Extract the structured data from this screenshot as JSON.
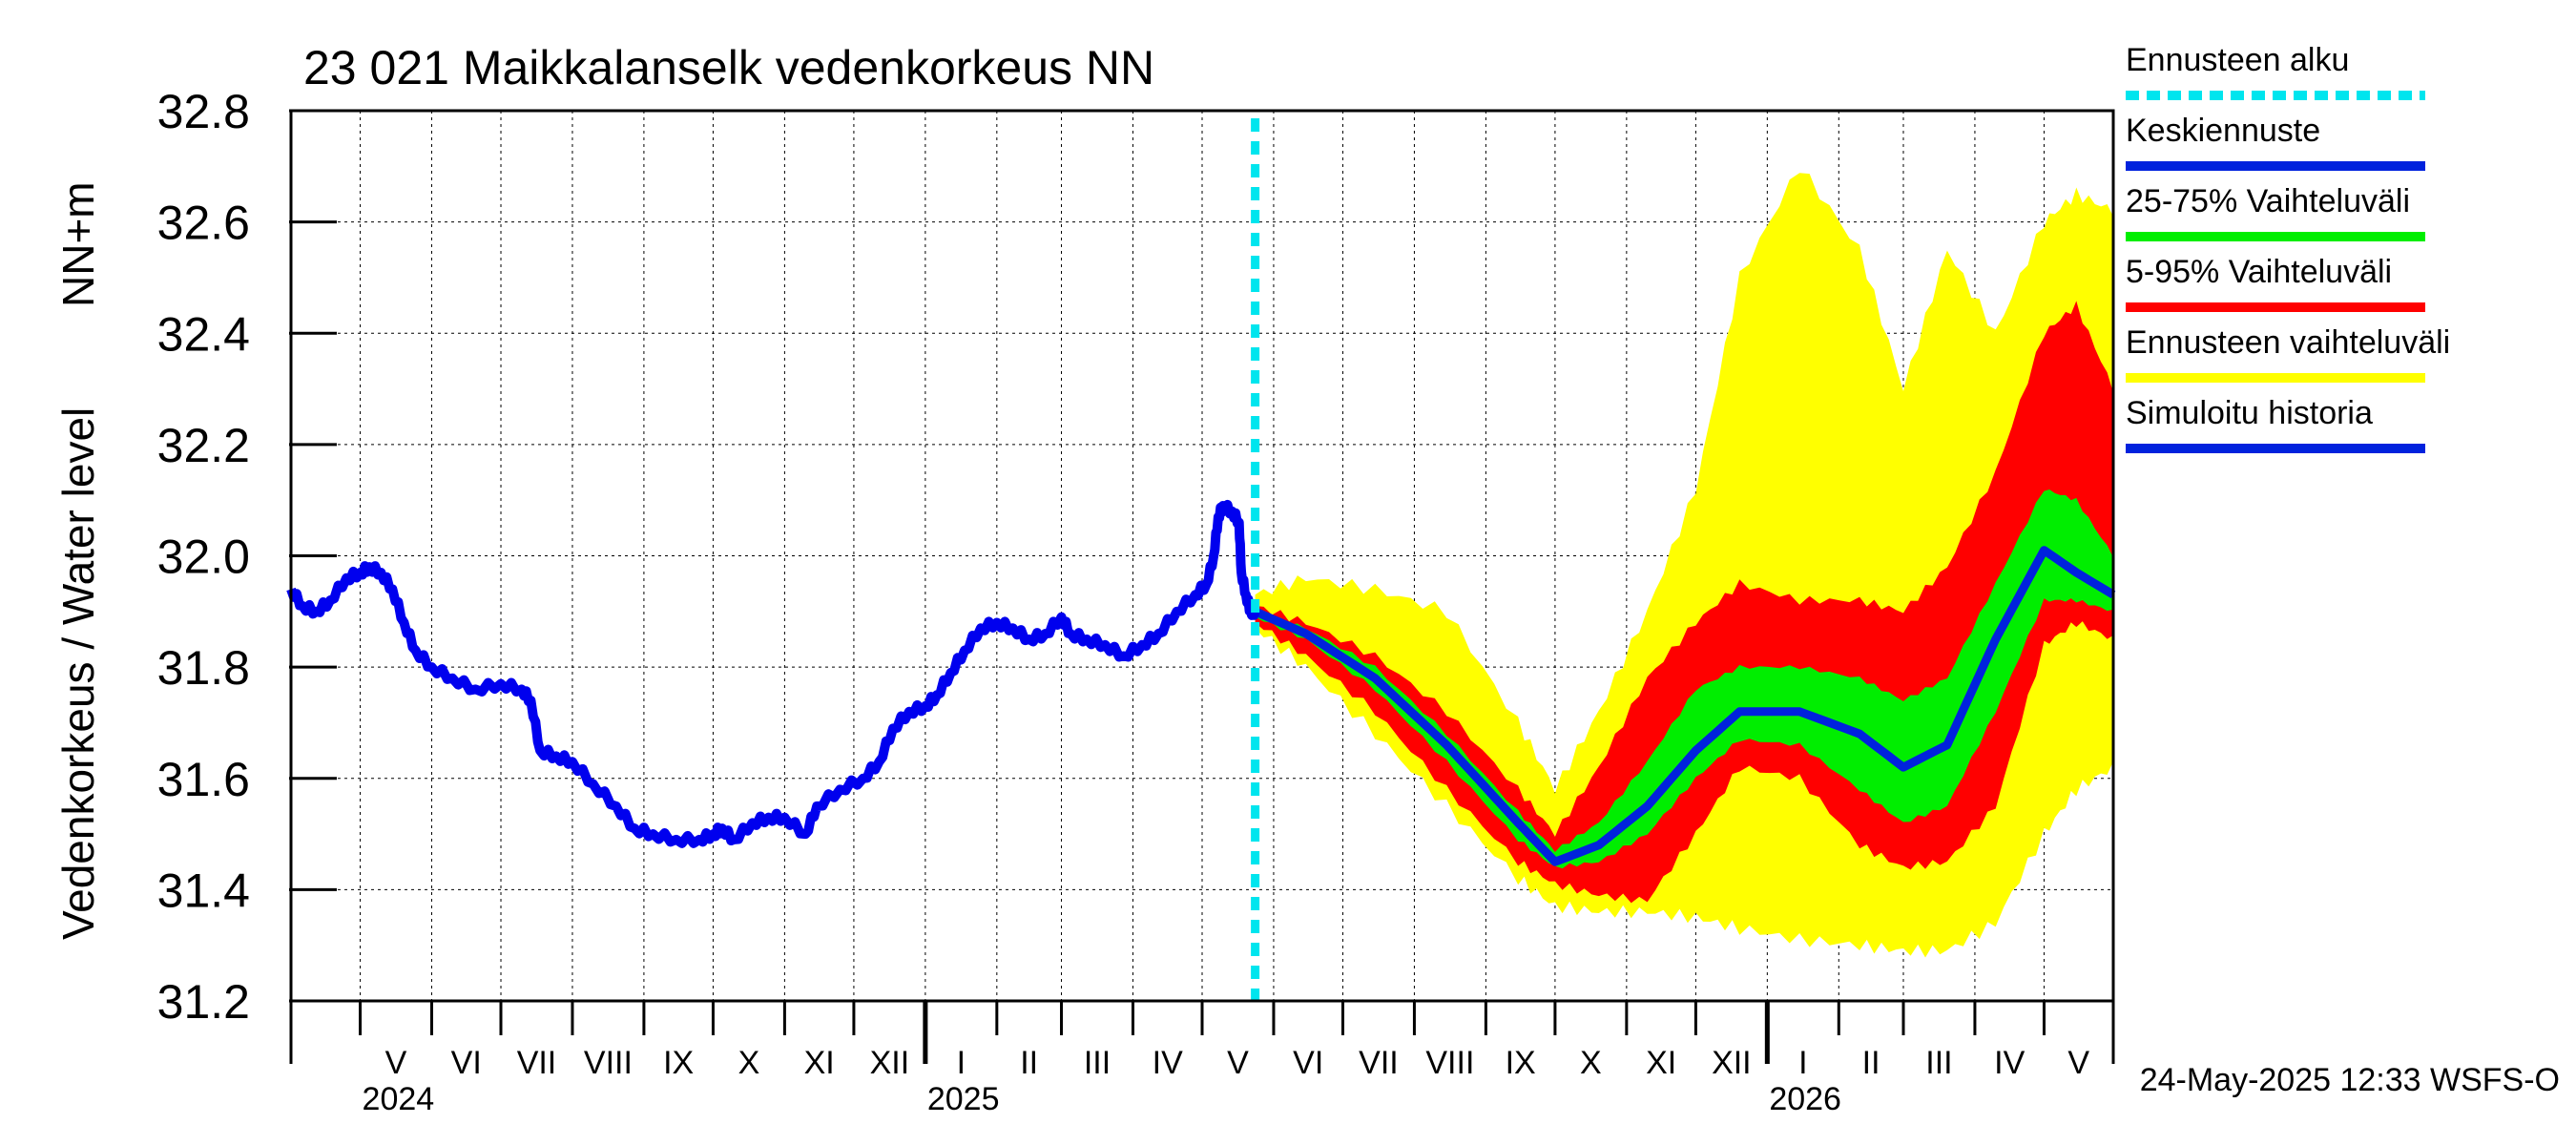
{
  "chart_data": {
    "type": "area",
    "title": "23 021 Maikkalanselk vedenkorkeus NN",
    "ylabel_main": "Vedenkorkeus / Water level",
    "ylabel_unit": "NN+m",
    "ylim": [
      31.2,
      32.8
    ],
    "yticks": [
      "31.2",
      "31.4",
      "31.6",
      "31.8",
      "32.0",
      "32.2",
      "32.4",
      "32.6",
      "32.8"
    ],
    "grid": true,
    "x_start": "2024-04-01",
    "x_end": "2026-05-31",
    "forecast_start": "2025-05-24",
    "months": [
      {
        "label": "V",
        "start": "2024-05-01"
      },
      {
        "label": "VI",
        "start": "2024-06-01"
      },
      {
        "label": "VII",
        "start": "2024-07-01"
      },
      {
        "label": "VIII",
        "start": "2024-08-01"
      },
      {
        "label": "IX",
        "start": "2024-09-01"
      },
      {
        "label": "X",
        "start": "2024-10-01"
      },
      {
        "label": "XI",
        "start": "2024-11-01"
      },
      {
        "label": "XII",
        "start": "2024-12-01"
      },
      {
        "label": "I",
        "start": "2025-01-01"
      },
      {
        "label": "II",
        "start": "2025-02-01"
      },
      {
        "label": "III",
        "start": "2025-03-01"
      },
      {
        "label": "IV",
        "start": "2025-04-01"
      },
      {
        "label": "V",
        "start": "2025-05-01"
      },
      {
        "label": "VI",
        "start": "2025-06-01"
      },
      {
        "label": "VII",
        "start": "2025-07-01"
      },
      {
        "label": "VIII",
        "start": "2025-08-01"
      },
      {
        "label": "IX",
        "start": "2025-09-01"
      },
      {
        "label": "X",
        "start": "2025-10-01"
      },
      {
        "label": "XI",
        "start": "2025-11-01"
      },
      {
        "label": "XII",
        "start": "2025-12-01"
      },
      {
        "label": "I",
        "start": "2026-01-01"
      },
      {
        "label": "II",
        "start": "2026-02-01"
      },
      {
        "label": "III",
        "start": "2026-03-01"
      },
      {
        "label": "IV",
        "start": "2026-04-01"
      },
      {
        "label": "V",
        "start": "2026-05-01"
      }
    ],
    "years": [
      {
        "label": "2024",
        "at": "2024-05-01"
      },
      {
        "label": "2025",
        "at": "2025-01-01"
      },
      {
        "label": "2026",
        "at": "2026-01-01"
      }
    ],
    "history": [
      [
        "2024-04-01",
        31.94
      ],
      [
        "2024-04-06",
        31.91
      ],
      [
        "2024-04-12",
        31.9
      ],
      [
        "2024-04-18",
        31.92
      ],
      [
        "2024-04-25",
        31.96
      ],
      [
        "2024-05-01",
        31.97
      ],
      [
        "2024-05-05",
        31.98
      ],
      [
        "2024-05-10",
        31.97
      ],
      [
        "2024-05-15",
        31.94
      ],
      [
        "2024-05-20",
        31.88
      ],
      [
        "2024-05-25",
        31.83
      ],
      [
        "2024-06-01",
        31.8
      ],
      [
        "2024-06-10",
        31.78
      ],
      [
        "2024-06-20",
        31.76
      ],
      [
        "2024-07-01",
        31.77
      ],
      [
        "2024-07-10",
        31.76
      ],
      [
        "2024-07-14",
        31.74
      ],
      [
        "2024-07-18",
        31.65
      ],
      [
        "2024-07-25",
        31.64
      ],
      [
        "2024-08-01",
        31.63
      ],
      [
        "2024-08-10",
        31.59
      ],
      [
        "2024-08-20",
        31.55
      ],
      [
        "2024-08-28",
        31.51
      ],
      [
        "2024-09-05",
        31.5
      ],
      [
        "2024-09-15",
        31.49
      ],
      [
        "2024-09-25",
        31.49
      ],
      [
        "2024-10-01",
        31.5
      ],
      [
        "2024-10-05",
        31.51
      ],
      [
        "2024-10-10",
        31.49
      ],
      [
        "2024-10-18",
        31.52
      ],
      [
        "2024-10-25",
        31.53
      ],
      [
        "2024-11-01",
        31.53
      ],
      [
        "2024-11-10",
        31.5
      ],
      [
        "2024-11-15",
        31.55
      ],
      [
        "2024-11-25",
        31.58
      ],
      [
        "2024-12-05",
        31.6
      ],
      [
        "2024-12-12",
        31.63
      ],
      [
        "2024-12-18",
        31.69
      ],
      [
        "2024-12-25",
        31.72
      ],
      [
        "2025-01-01",
        31.73
      ],
      [
        "2025-01-06",
        31.75
      ],
      [
        "2025-01-12",
        31.79
      ],
      [
        "2025-01-18",
        31.83
      ],
      [
        "2025-01-25",
        31.87
      ],
      [
        "2025-02-01",
        31.88
      ],
      [
        "2025-02-08",
        31.87
      ],
      [
        "2025-02-15",
        31.85
      ],
      [
        "2025-02-22",
        31.86
      ],
      [
        "2025-03-01",
        31.89
      ],
      [
        "2025-03-05",
        31.86
      ],
      [
        "2025-03-12",
        31.85
      ],
      [
        "2025-03-20",
        31.84
      ],
      [
        "2025-03-28",
        31.82
      ],
      [
        "2025-04-05",
        31.84
      ],
      [
        "2025-04-12",
        31.86
      ],
      [
        "2025-04-20",
        31.9
      ],
      [
        "2025-04-28",
        31.93
      ],
      [
        "2025-05-03",
        31.95
      ],
      [
        "2025-05-06",
        32.0
      ],
      [
        "2025-05-08",
        32.07
      ],
      [
        "2025-05-10",
        32.09
      ],
      [
        "2025-05-14",
        32.08
      ],
      [
        "2025-05-17",
        32.06
      ],
      [
        "2025-05-18",
        31.97
      ],
      [
        "2025-05-20",
        31.93
      ],
      [
        "2025-05-22",
        31.9
      ],
      [
        "2025-05-24",
        31.9
      ]
    ],
    "forecast": [
      {
        "date": "2025-05-24",
        "y_min": 31.87,
        "y_max": 31.93,
        "p5": 31.88,
        "p95": 31.91,
        "p25": 31.89,
        "p75": 31.9,
        "median": 31.9
      },
      {
        "date": "2025-06-15",
        "y_min": 31.8,
        "y_max": 31.96,
        "p5": 31.82,
        "p95": 31.88,
        "p25": 31.85,
        "p75": 31.87,
        "median": 31.86
      },
      {
        "date": "2025-07-15",
        "y_min": 31.68,
        "y_max": 31.94,
        "p5": 31.72,
        "p95": 31.82,
        "p25": 31.76,
        "p75": 31.8,
        "median": 31.78
      },
      {
        "date": "2025-08-15",
        "y_min": 31.55,
        "y_max": 31.9,
        "p5": 31.58,
        "p95": 31.72,
        "p25": 31.63,
        "p75": 31.68,
        "median": 31.66
      },
      {
        "date": "2025-09-15",
        "y_min": 31.42,
        "y_max": 31.7,
        "p5": 31.45,
        "p95": 31.58,
        "p25": 31.49,
        "p75": 31.54,
        "median": 31.52
      },
      {
        "date": "2025-10-01",
        "y_min": 31.37,
        "y_max": 31.58,
        "p5": 31.41,
        "p95": 31.5,
        "p25": 31.44,
        "p75": 31.47,
        "median": 31.45
      },
      {
        "date": "2025-10-20",
        "y_min": 31.36,
        "y_max": 31.72,
        "p5": 31.39,
        "p95": 31.62,
        "p25": 31.45,
        "p75": 31.52,
        "median": 31.48
      },
      {
        "date": "2025-11-10",
        "y_min": 31.36,
        "y_max": 31.9,
        "p5": 31.38,
        "p95": 31.78,
        "p25": 31.5,
        "p75": 31.63,
        "median": 31.55
      },
      {
        "date": "2025-12-01",
        "y_min": 31.35,
        "y_max": 32.12,
        "p5": 31.5,
        "p95": 31.88,
        "p25": 31.6,
        "p75": 31.76,
        "median": 31.65
      },
      {
        "date": "2025-12-20",
        "y_min": 31.33,
        "y_max": 32.5,
        "p5": 31.62,
        "p95": 31.95,
        "p25": 31.67,
        "p75": 31.8,
        "median": 31.72
      },
      {
        "date": "2026-01-15",
        "y_min": 31.31,
        "y_max": 32.7,
        "p5": 31.6,
        "p95": 31.92,
        "p25": 31.66,
        "p75": 31.8,
        "median": 31.72
      },
      {
        "date": "2026-02-10",
        "y_min": 31.3,
        "y_max": 32.55,
        "p5": 31.48,
        "p95": 31.92,
        "p25": 31.58,
        "p75": 31.78,
        "median": 31.68
      },
      {
        "date": "2026-03-01",
        "y_min": 31.29,
        "y_max": 32.3,
        "p5": 31.44,
        "p95": 31.9,
        "p25": 31.52,
        "p75": 31.74,
        "median": 31.62
      },
      {
        "date": "2026-03-20",
        "y_min": 31.29,
        "y_max": 32.55,
        "p5": 31.45,
        "p95": 31.98,
        "p25": 31.55,
        "p75": 31.78,
        "median": 31.66
      },
      {
        "date": "2026-04-10",
        "y_min": 31.34,
        "y_max": 32.4,
        "p5": 31.55,
        "p95": 32.15,
        "p25": 31.72,
        "p75": 31.95,
        "median": 31.85
      },
      {
        "date": "2026-05-01",
        "y_min": 31.5,
        "y_max": 32.6,
        "p5": 31.84,
        "p95": 32.4,
        "p25": 31.92,
        "p75": 32.12,
        "median": 32.01
      },
      {
        "date": "2026-05-15",
        "y_min": 31.58,
        "y_max": 32.65,
        "p5": 31.88,
        "p95": 32.45,
        "p25": 31.92,
        "p75": 32.1,
        "median": 31.97
      },
      {
        "date": "2026-05-31",
        "y_min": 31.62,
        "y_max": 32.62,
        "p5": 31.85,
        "p95": 32.3,
        "p25": 31.9,
        "p75": 32.0,
        "median": 31.93
      }
    ],
    "legend": [
      {
        "label": "Ennusteen alku",
        "color": "#00e5ee",
        "style": "dotted"
      },
      {
        "label": "Keskiennuste",
        "color": "#0022dd",
        "style": "solid"
      },
      {
        "label": "25-75% Vaihteluväli",
        "color": "#00ee00",
        "style": "solid"
      },
      {
        "label": "5-95% Vaihteluväli",
        "color": "#ff0000",
        "style": "solid"
      },
      {
        "label": "Ennusteen vaihteluväli",
        "color": "#ffff00",
        "style": "solid"
      },
      {
        "label": "Simuloitu historia",
        "color": "#0022dd",
        "style": "solid"
      }
    ],
    "colors": {
      "history": "#0000ee",
      "median": "#0022dd",
      "band_outer": "#ffff00",
      "band_5_95": "#ff0000",
      "band_25_75": "#00ee00",
      "forecast_start": "#00e5ee",
      "grid": "#000000"
    }
  },
  "footer": "24-May-2025 12:33 WSFS-O"
}
